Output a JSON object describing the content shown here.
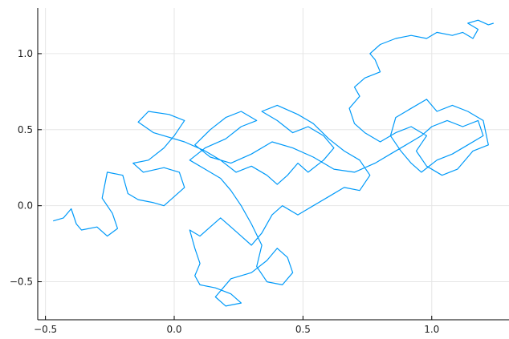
{
  "chart_data": {
    "type": "line",
    "title": "",
    "xlabel": "",
    "ylabel": "",
    "xlim": [
      -0.53,
      1.3
    ],
    "ylim": [
      -0.75,
      1.3
    ],
    "grid": true,
    "legend": "none",
    "x_ticks": [
      {
        "value": -0.5,
        "label": "−0.5"
      },
      {
        "value": 0.0,
        "label": "0.0"
      },
      {
        "value": 0.5,
        "label": "0.5"
      },
      {
        "value": 1.0,
        "label": "1.0"
      }
    ],
    "y_ticks": [
      {
        "value": -0.5,
        "label": "−0.5"
      },
      {
        "value": 0.0,
        "label": "0.0"
      },
      {
        "value": 0.5,
        "label": "0.5"
      },
      {
        "value": 1.0,
        "label": "1.0"
      }
    ],
    "series": [
      {
        "color": "#009af9",
        "points": [
          [
            -0.47,
            -0.1
          ],
          [
            -0.43,
            -0.08
          ],
          [
            -0.4,
            -0.02
          ],
          [
            -0.38,
            -0.12
          ],
          [
            -0.36,
            -0.16
          ],
          [
            -0.3,
            -0.14
          ],
          [
            -0.26,
            -0.2
          ],
          [
            -0.22,
            -0.15
          ],
          [
            -0.24,
            -0.05
          ],
          [
            -0.28,
            0.05
          ],
          [
            -0.26,
            0.22
          ],
          [
            -0.2,
            0.2
          ],
          [
            -0.18,
            0.08
          ],
          [
            -0.14,
            0.04
          ],
          [
            -0.08,
            0.02
          ],
          [
            -0.04,
            0.0
          ],
          [
            0.0,
            0.06
          ],
          [
            0.04,
            0.12
          ],
          [
            0.02,
            0.22
          ],
          [
            -0.04,
            0.25
          ],
          [
            -0.12,
            0.22
          ],
          [
            -0.16,
            0.28
          ],
          [
            -0.1,
            0.3
          ],
          [
            -0.04,
            0.38
          ],
          [
            0.0,
            0.46
          ],
          [
            0.04,
            0.56
          ],
          [
            -0.02,
            0.6
          ],
          [
            -0.1,
            0.62
          ],
          [
            -0.14,
            0.55
          ],
          [
            -0.08,
            0.48
          ],
          [
            0.04,
            0.42
          ],
          [
            0.12,
            0.36
          ],
          [
            0.18,
            0.3
          ],
          [
            0.24,
            0.22
          ],
          [
            0.3,
            0.26
          ],
          [
            0.36,
            0.2
          ],
          [
            0.4,
            0.14
          ],
          [
            0.44,
            0.2
          ],
          [
            0.48,
            0.28
          ],
          [
            0.52,
            0.22
          ],
          [
            0.58,
            0.3
          ],
          [
            0.62,
            0.38
          ],
          [
            0.58,
            0.46
          ],
          [
            0.52,
            0.52
          ],
          [
            0.46,
            0.48
          ],
          [
            0.4,
            0.56
          ],
          [
            0.34,
            0.62
          ],
          [
            0.4,
            0.66
          ],
          [
            0.48,
            0.6
          ],
          [
            0.54,
            0.54
          ],
          [
            0.6,
            0.44
          ],
          [
            0.66,
            0.36
          ],
          [
            0.72,
            0.3
          ],
          [
            0.76,
            0.2
          ],
          [
            0.72,
            0.1
          ],
          [
            0.66,
            0.12
          ],
          [
            0.6,
            0.06
          ],
          [
            0.54,
            0.0
          ],
          [
            0.48,
            -0.06
          ],
          [
            0.42,
            0.0
          ],
          [
            0.38,
            -0.06
          ],
          [
            0.34,
            -0.18
          ],
          [
            0.3,
            -0.26
          ],
          [
            0.26,
            -0.2
          ],
          [
            0.22,
            -0.14
          ],
          [
            0.18,
            -0.08
          ],
          [
            0.14,
            -0.14
          ],
          [
            0.1,
            -0.2
          ],
          [
            0.06,
            -0.16
          ],
          [
            0.08,
            -0.28
          ],
          [
            0.1,
            -0.38
          ],
          [
            0.08,
            -0.46
          ],
          [
            0.1,
            -0.52
          ],
          [
            0.16,
            -0.54
          ],
          [
            0.22,
            -0.58
          ],
          [
            0.26,
            -0.64
          ],
          [
            0.2,
            -0.66
          ],
          [
            0.16,
            -0.6
          ],
          [
            0.22,
            -0.48
          ],
          [
            0.3,
            -0.44
          ],
          [
            0.36,
            -0.36
          ],
          [
            0.4,
            -0.28
          ],
          [
            0.44,
            -0.34
          ],
          [
            0.46,
            -0.44
          ],
          [
            0.42,
            -0.52
          ],
          [
            0.36,
            -0.5
          ],
          [
            0.32,
            -0.4
          ],
          [
            0.34,
            -0.26
          ],
          [
            0.3,
            -0.12
          ],
          [
            0.26,
            0.0
          ],
          [
            0.22,
            0.1
          ],
          [
            0.18,
            0.18
          ],
          [
            0.12,
            0.24
          ],
          [
            0.06,
            0.3
          ],
          [
            0.12,
            0.38
          ],
          [
            0.2,
            0.44
          ],
          [
            0.26,
            0.52
          ],
          [
            0.32,
            0.56
          ],
          [
            0.26,
            0.62
          ],
          [
            0.2,
            0.58
          ],
          [
            0.14,
            0.5
          ],
          [
            0.08,
            0.4
          ],
          [
            0.14,
            0.32
          ],
          [
            0.22,
            0.28
          ],
          [
            0.3,
            0.34
          ],
          [
            0.38,
            0.42
          ],
          [
            0.46,
            0.38
          ],
          [
            0.54,
            0.32
          ],
          [
            0.62,
            0.24
          ],
          [
            0.7,
            0.22
          ],
          [
            0.78,
            0.28
          ],
          [
            0.84,
            0.34
          ],
          [
            0.9,
            0.4
          ],
          [
            0.96,
            0.46
          ],
          [
            1.0,
            0.52
          ],
          [
            1.06,
            0.56
          ],
          [
            1.12,
            0.52
          ],
          [
            1.18,
            0.56
          ],
          [
            1.2,
            0.46
          ],
          [
            1.14,
            0.4
          ],
          [
            1.08,
            0.34
          ],
          [
            1.02,
            0.3
          ],
          [
            0.96,
            0.22
          ],
          [
            0.92,
            0.28
          ],
          [
            0.88,
            0.36
          ],
          [
            0.84,
            0.46
          ],
          [
            0.86,
            0.58
          ],
          [
            0.92,
            0.64
          ],
          [
            0.98,
            0.7
          ],
          [
            1.02,
            0.62
          ],
          [
            1.08,
            0.66
          ],
          [
            1.14,
            0.62
          ],
          [
            1.2,
            0.56
          ],
          [
            1.22,
            0.4
          ],
          [
            1.16,
            0.36
          ],
          [
            1.1,
            0.24
          ],
          [
            1.04,
            0.2
          ],
          [
            0.98,
            0.26
          ],
          [
            0.94,
            0.36
          ],
          [
            0.98,
            0.46
          ],
          [
            0.92,
            0.52
          ],
          [
            0.86,
            0.48
          ],
          [
            0.8,
            0.42
          ],
          [
            0.74,
            0.48
          ],
          [
            0.7,
            0.54
          ],
          [
            0.68,
            0.64
          ],
          [
            0.72,
            0.72
          ],
          [
            0.7,
            0.78
          ],
          [
            0.74,
            0.84
          ],
          [
            0.8,
            0.88
          ],
          [
            0.78,
            0.96
          ],
          [
            0.76,
            1.0
          ],
          [
            0.8,
            1.06
          ],
          [
            0.86,
            1.1
          ],
          [
            0.92,
            1.12
          ],
          [
            0.98,
            1.1
          ],
          [
            1.02,
            1.14
          ],
          [
            1.08,
            1.12
          ],
          [
            1.12,
            1.14
          ],
          [
            1.16,
            1.1
          ],
          [
            1.18,
            1.16
          ],
          [
            1.14,
            1.2
          ],
          [
            1.18,
            1.22
          ],
          [
            1.22,
            1.19
          ],
          [
            1.24,
            1.2
          ]
        ]
      }
    ]
  }
}
